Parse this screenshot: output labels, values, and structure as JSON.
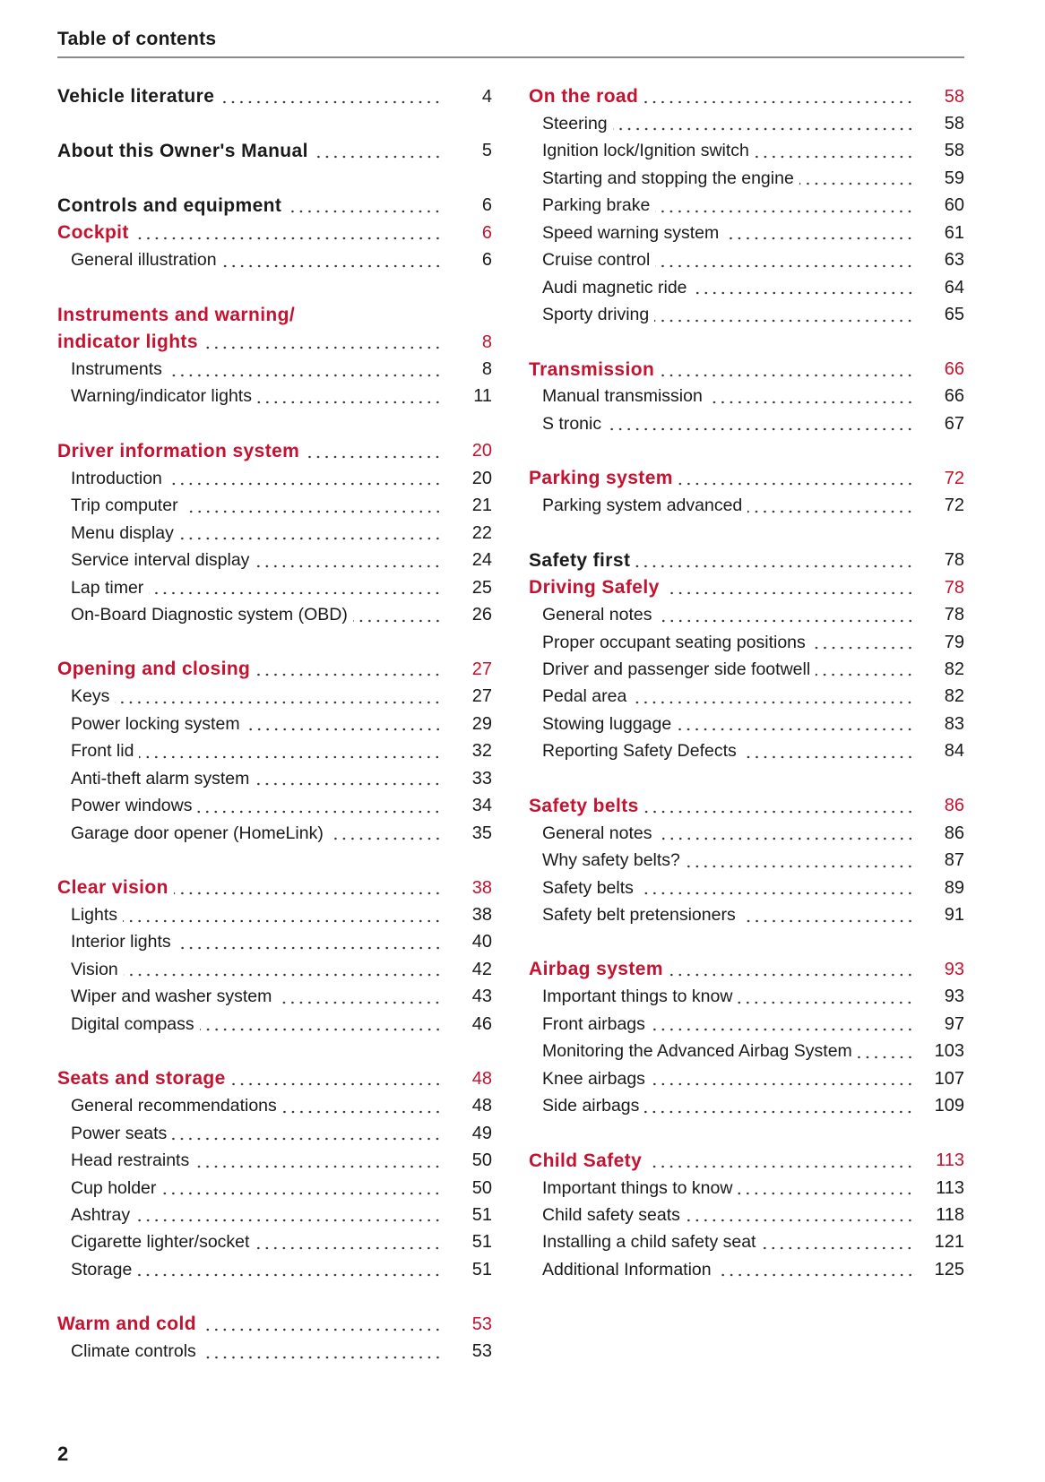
{
  "header": {
    "title": "Table of contents"
  },
  "colors": {
    "accent": "#c41230",
    "text": "#1a1a1a"
  },
  "columns": [
    [
      [
        {
          "type": "h",
          "text": "Vehicle literature",
          "page": "4"
        }
      ],
      [
        {
          "type": "h",
          "text": "About this Owner's Manual",
          "page": "5"
        }
      ],
      [
        {
          "type": "h",
          "text": "Controls and equipment",
          "page": "6"
        },
        {
          "type": "r",
          "text": "Cockpit",
          "page": "6"
        },
        {
          "type": "s",
          "text": "General illustration",
          "page": "6"
        }
      ],
      [
        {
          "type": "r",
          "text": "Instruments and warning/",
          "page": ""
        },
        {
          "type": "r",
          "text": "indicator lights",
          "page": "8"
        },
        {
          "type": "s",
          "text": "Instruments",
          "page": "8"
        },
        {
          "type": "s",
          "text": "Warning/indicator lights",
          "page": "11"
        }
      ],
      [
        {
          "type": "r",
          "text": "Driver information system",
          "page": "20"
        },
        {
          "type": "s",
          "text": "Introduction",
          "page": "20"
        },
        {
          "type": "s",
          "text": "Trip computer",
          "page": "21"
        },
        {
          "type": "s",
          "text": "Menu display",
          "page": "22"
        },
        {
          "type": "s",
          "text": "Service interval display",
          "page": "24"
        },
        {
          "type": "s",
          "text": "Lap timer",
          "page": "25"
        },
        {
          "type": "s",
          "text": "On-Board Diagnostic system (OBD)",
          "page": "26"
        }
      ],
      [
        {
          "type": "r",
          "text": "Opening and closing",
          "page": "27"
        },
        {
          "type": "s",
          "text": "Keys",
          "page": "27"
        },
        {
          "type": "s",
          "text": "Power locking system",
          "page": "29"
        },
        {
          "type": "s",
          "text": "Front lid",
          "page": "32"
        },
        {
          "type": "s",
          "text": "Anti-theft alarm system",
          "page": "33"
        },
        {
          "type": "s",
          "text": "Power windows",
          "page": "34"
        },
        {
          "type": "s",
          "text": "Garage door opener (HomeLink)",
          "page": "35"
        }
      ],
      [
        {
          "type": "r",
          "text": "Clear vision",
          "page": "38"
        },
        {
          "type": "s",
          "text": "Lights",
          "page": "38"
        },
        {
          "type": "s",
          "text": "Interior lights",
          "page": "40"
        },
        {
          "type": "s",
          "text": "Vision",
          "page": "42"
        },
        {
          "type": "s",
          "text": "Wiper and washer system",
          "page": "43"
        },
        {
          "type": "s",
          "text": "Digital compass",
          "page": "46"
        }
      ],
      [
        {
          "type": "r",
          "text": "Seats and storage",
          "page": "48"
        },
        {
          "type": "s",
          "text": "General recommendations",
          "page": "48"
        },
        {
          "type": "s",
          "text": "Power seats",
          "page": "49"
        },
        {
          "type": "s",
          "text": "Head restraints",
          "page": "50"
        },
        {
          "type": "s",
          "text": "Cup holder",
          "page": "50"
        },
        {
          "type": "s",
          "text": "Ashtray",
          "page": "51"
        },
        {
          "type": "s",
          "text": "Cigarette lighter/socket",
          "page": "51"
        },
        {
          "type": "s",
          "text": "Storage",
          "page": "51"
        }
      ],
      [
        {
          "type": "r",
          "text": "Warm and cold",
          "page": "53"
        },
        {
          "type": "s",
          "text": "Climate controls",
          "page": "53"
        }
      ]
    ],
    [
      [
        {
          "type": "r",
          "text": "On the road",
          "page": "58"
        },
        {
          "type": "s",
          "text": "Steering",
          "page": "58"
        },
        {
          "type": "s",
          "text": "Ignition lock/Ignition switch",
          "page": "58"
        },
        {
          "type": "s",
          "text": "Starting and stopping the engine",
          "page": "59"
        },
        {
          "type": "s",
          "text": "Parking brake",
          "page": "60"
        },
        {
          "type": "s",
          "text": "Speed warning system",
          "page": "61"
        },
        {
          "type": "s",
          "text": "Cruise control",
          "page": "63"
        },
        {
          "type": "s",
          "text": "Audi magnetic ride",
          "page": "64"
        },
        {
          "type": "s",
          "text": "Sporty driving",
          "page": "65"
        }
      ],
      [
        {
          "type": "r",
          "text": "Transmission",
          "page": "66"
        },
        {
          "type": "s",
          "text": "Manual transmission",
          "page": "66"
        },
        {
          "type": "s",
          "text": "S tronic",
          "page": "67"
        }
      ],
      [
        {
          "type": "r",
          "text": "Parking system",
          "page": "72"
        },
        {
          "type": "s",
          "text": "Parking system advanced",
          "page": "72"
        }
      ],
      [
        {
          "type": "h",
          "text": "Safety first",
          "page": "78"
        },
        {
          "type": "r",
          "text": "Driving Safely",
          "page": "78"
        },
        {
          "type": "s",
          "text": "General notes",
          "page": "78"
        },
        {
          "type": "s",
          "text": "Proper occupant seating positions",
          "page": "79"
        },
        {
          "type": "s",
          "text": "Driver and passenger side footwell",
          "page": "82"
        },
        {
          "type": "s",
          "text": "Pedal area",
          "page": "82"
        },
        {
          "type": "s",
          "text": "Stowing luggage",
          "page": "83"
        },
        {
          "type": "s",
          "text": "Reporting Safety Defects",
          "page": "84"
        }
      ],
      [
        {
          "type": "r",
          "text": "Safety belts",
          "page": "86"
        },
        {
          "type": "s",
          "text": "General notes",
          "page": "86"
        },
        {
          "type": "s",
          "text": "Why safety belts?",
          "page": "87"
        },
        {
          "type": "s",
          "text": "Safety belts",
          "page": "89"
        },
        {
          "type": "s",
          "text": "Safety belt pretensioners",
          "page": "91"
        }
      ],
      [
        {
          "type": "r",
          "text": "Airbag system",
          "page": "93"
        },
        {
          "type": "s",
          "text": "Important things to know",
          "page": "93"
        },
        {
          "type": "s",
          "text": "Front airbags",
          "page": "97"
        },
        {
          "type": "s",
          "text": "Monitoring the Advanced Airbag System",
          "page": "103"
        },
        {
          "type": "s",
          "text": "Knee airbags",
          "page": "107"
        },
        {
          "type": "s",
          "text": "Side airbags",
          "page": "109"
        }
      ],
      [
        {
          "type": "r",
          "text": "Child Safety",
          "page": "113"
        },
        {
          "type": "s",
          "text": "Important things to know",
          "page": "113"
        },
        {
          "type": "s",
          "text": "Child safety seats",
          "page": "118"
        },
        {
          "type": "s",
          "text": "Installing a child safety seat",
          "page": "121"
        },
        {
          "type": "s",
          "text": "Additional Information",
          "page": "125"
        }
      ]
    ]
  ],
  "footer": {
    "page_number": "2"
  }
}
